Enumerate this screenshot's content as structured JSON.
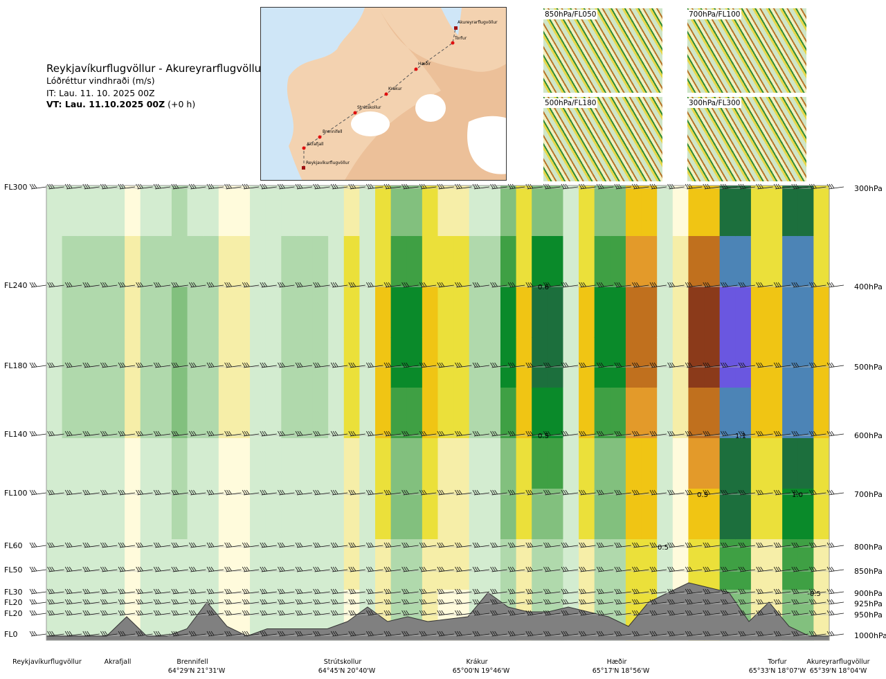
{
  "header": {
    "title": "Reykjavíkurflugvöllur - Akureyrarflugvöllur",
    "subtitle": "Lóðréttur vindhraði (m/s)",
    "issue_time": "IT: Lau. 11. 10. 2025 00Z",
    "valid_time_bold": "VT: Lau. 11.10.2025 00Z",
    "valid_offset": " (+0 h)"
  },
  "map": {
    "points": [
      "Akureyrarflugvöllur",
      "Torfur",
      "Hæðir",
      "Krákur",
      "Strútskollur",
      "Brennifell",
      "Akrafjall",
      "Reykjavíkurflugvöllur"
    ]
  },
  "thumbnails": [
    "850hPa/FL050",
    "700hPa/FL100",
    "500hPa/FL180",
    "300hPa/FL300"
  ],
  "chart_data": {
    "type": "heatmap",
    "title": "Lóðréttur vindhraði (m/s)",
    "left_axis": [
      "FL300",
      "FL240",
      "FL180",
      "FL140",
      "FL100",
      "FL60",
      "FL50",
      "FL30",
      "FL20",
      "FL20",
      "FL0"
    ],
    "right_axis": [
      "300hPa",
      "400hPa",
      "500hPa",
      "600hPa",
      "700hPa",
      "800hPa",
      "850hPa",
      "900hPa",
      "925hPa",
      "950hPa",
      "1000hPa"
    ],
    "pressure_levels": [
      300,
      400,
      500,
      600,
      700,
      800,
      850,
      900,
      925,
      950,
      1000
    ],
    "column_values_midlevel": [
      0.1,
      0.2,
      0.2,
      0.2,
      0.2,
      -0.1,
      0.2,
      0.2,
      0.3,
      0.2,
      0.2,
      -0.1,
      -0.1,
      0.1,
      0.1,
      0.2,
      0.2,
      0.2,
      0.1,
      -0.2,
      0.1,
      -0.3,
      0.5,
      0.5,
      -0.3,
      -0.2,
      -0.2,
      0.2,
      0.2,
      0.5,
      -0.3,
      0.6,
      0.6,
      0.1,
      -0.3,
      0.5,
      0.5,
      -0.5,
      -0.5,
      0.1,
      -0.1,
      -0.6,
      -0.6,
      1.1,
      1.1,
      -0.3,
      -0.3,
      1.0,
      1.0,
      -0.3
    ],
    "contour_labels": [
      {
        "text": "0.6",
        "level": 400
      },
      {
        "text": "0.5",
        "level": 600
      },
      {
        "text": "1.1",
        "level": 600
      },
      {
        "text": "0.5",
        "level": 700
      },
      {
        "text": "1.0",
        "level": 700
      },
      {
        "text": "0.5",
        "level": 800
      },
      {
        "text": "-0.5",
        "level": 900
      }
    ],
    "terrain_m": [
      0,
      0,
      0,
      0,
      400,
      0,
      0,
      150,
      700,
      200,
      0,
      150,
      150,
      150,
      150,
      300,
      600,
      300,
      400,
      300,
      350,
      400,
      900,
      600,
      500,
      500,
      600,
      500,
      400,
      200,
      700,
      900,
      1100,
      1000,
      900,
      300,
      700,
      200,
      0,
      0
    ],
    "stations": [
      {
        "name": "Reykjavíkurflugvöllur",
        "coord": ""
      },
      {
        "name": "Akrafjall",
        "coord": ""
      },
      {
        "name": "Brennifell",
        "coord": "64°29'N 21°31'W"
      },
      {
        "name": "Strútskollur",
        "coord": "64°45'N 20°40'W"
      },
      {
        "name": "Krákur",
        "coord": "65°00'N 19°46'W"
      },
      {
        "name": "Hæðir",
        "coord": "65°17'N 18°56'W"
      },
      {
        "name": "Torfur",
        "coord": "65°33'N 18°07'W"
      },
      {
        "name": "Akureyrarflugvöllur",
        "coord": "65°39'N 18°04'W"
      }
    ],
    "colors": {
      "neg": [
        "#fffbdc",
        "#f6eea8",
        "#ebe03a",
        "#f0c514",
        "#e39a2a",
        "#c0701e",
        "#8b3a1a"
      ],
      "pos": [
        "#d3ecd0",
        "#b0d9ac",
        "#82c07e",
        "#3fa044",
        "#0a8a2a",
        "#1c6f3d",
        "#4c84b6",
        "#6a57e0"
      ]
    }
  }
}
